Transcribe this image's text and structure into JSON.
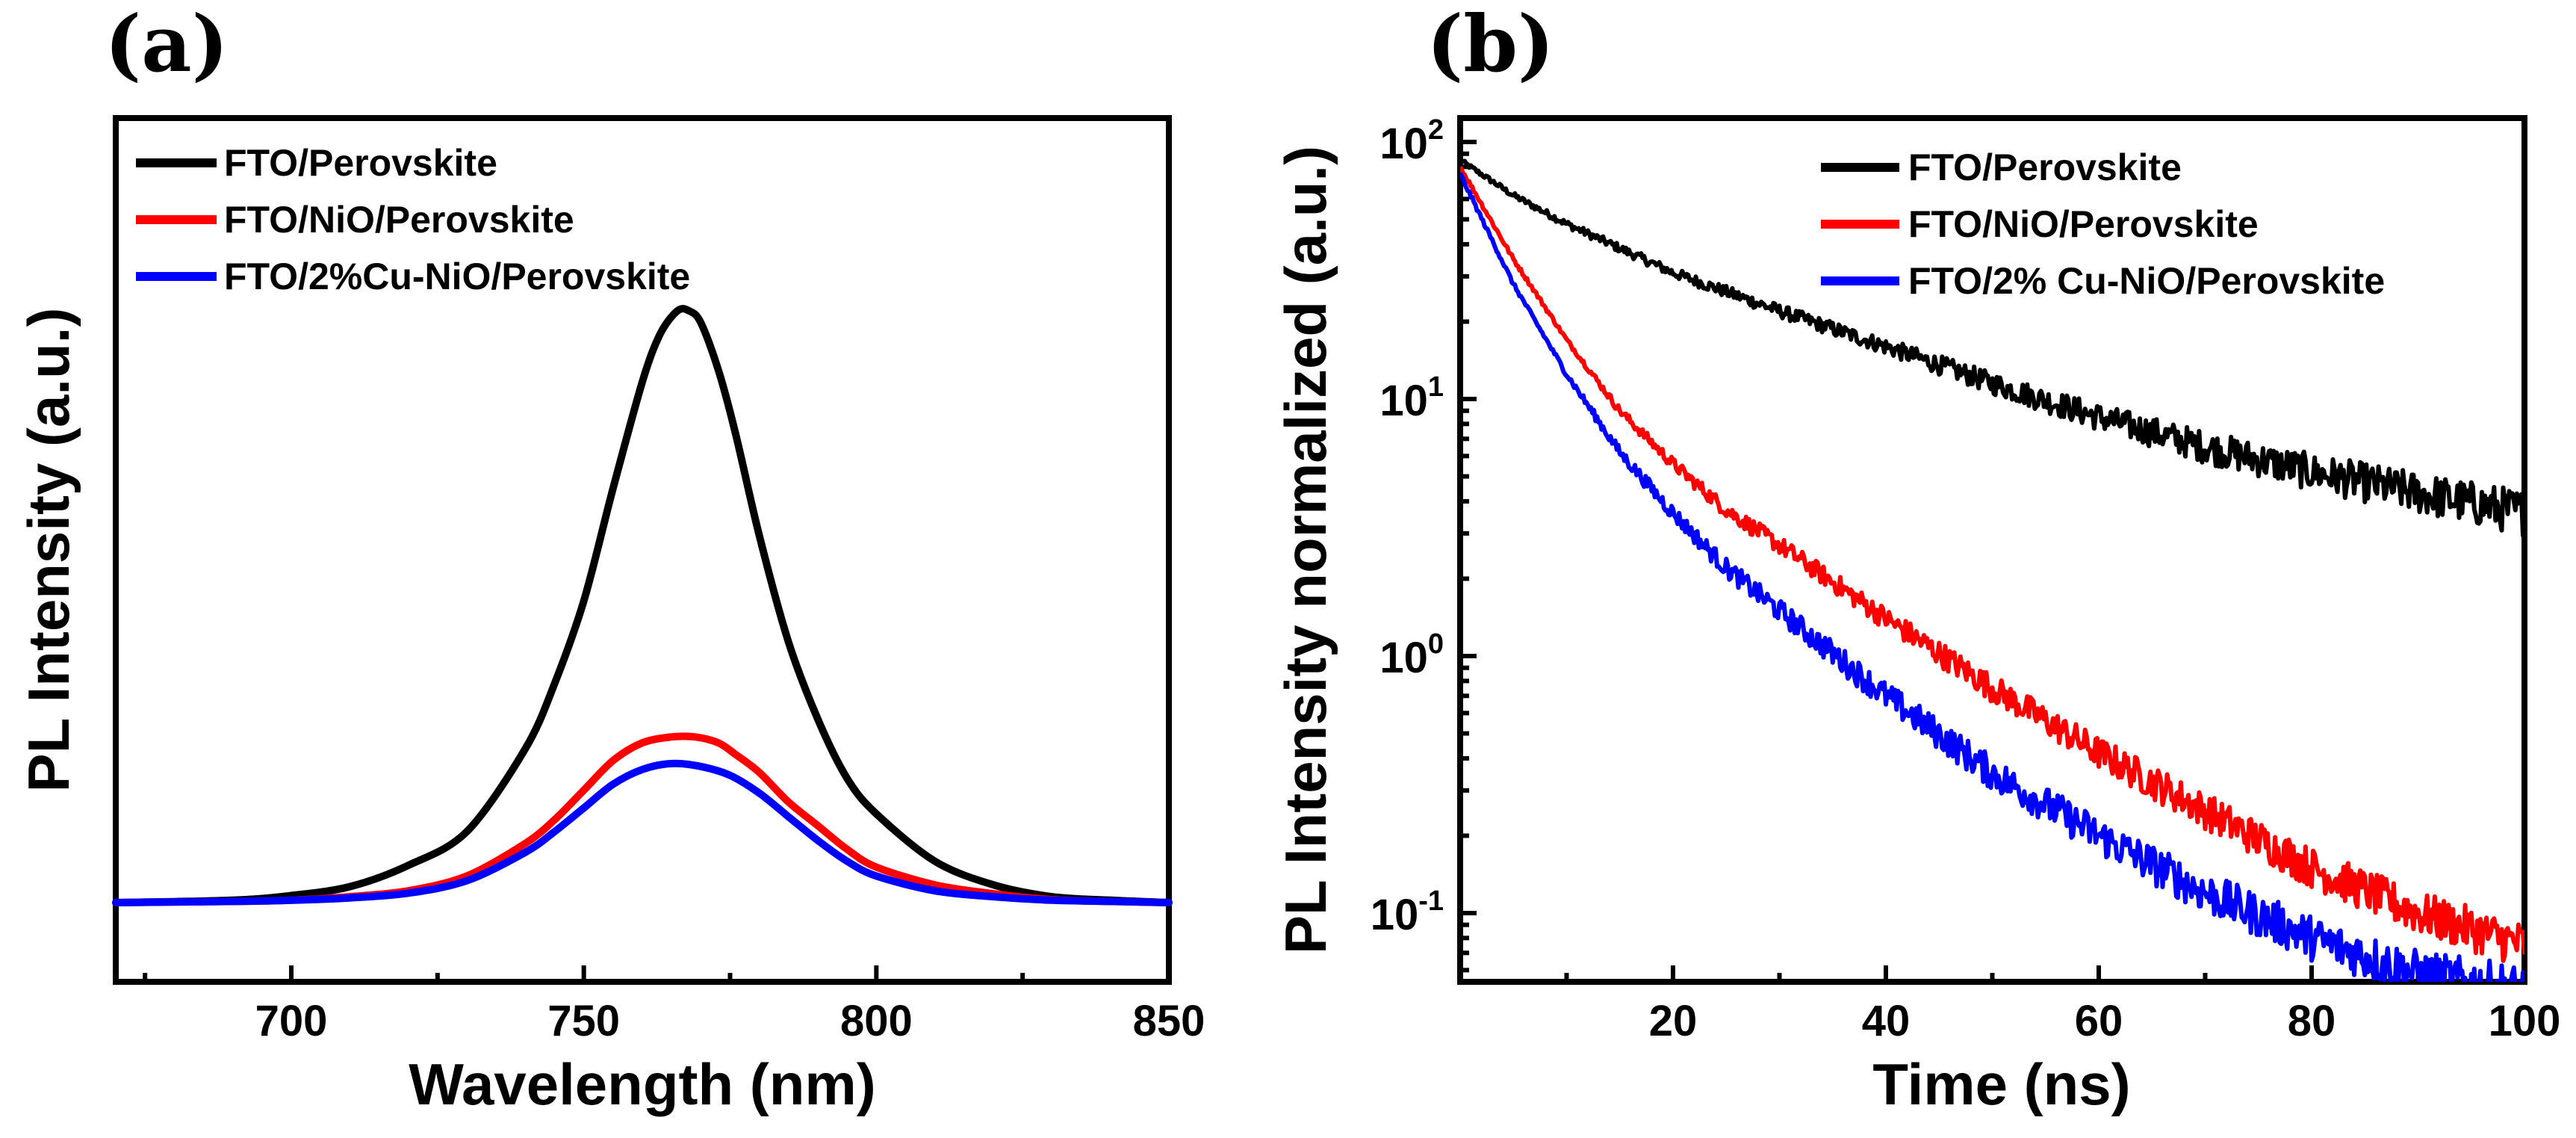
{
  "chart_data": [
    {
      "panel": "(a)",
      "type": "line",
      "xlabel": "Wavelength (nm)",
      "ylabel": "PL Intensity (a.u.)",
      "xlim": [
        670,
        850
      ],
      "ylim": [
        0,
        1.0
      ],
      "xticks": [
        700,
        750,
        800,
        850
      ],
      "yticks_shown": false,
      "legend_position": "top-left",
      "series": [
        {
          "name": "FTO/Perovskite",
          "color": "#000000",
          "x": [
            670,
            690,
            700,
            710,
            720,
            730,
            740,
            745,
            750,
            755,
            760,
            763,
            766,
            768,
            770,
            773,
            776,
            780,
            785,
            790,
            795,
            800,
            810,
            820,
            830,
            840,
            850
          ],
          "y": [
            0.0,
            0.004,
            0.012,
            0.027,
            0.063,
            0.12,
            0.26,
            0.37,
            0.51,
            0.7,
            0.88,
            0.96,
            1.0,
            1.0,
            0.98,
            0.9,
            0.79,
            0.62,
            0.44,
            0.31,
            0.21,
            0.15,
            0.07,
            0.03,
            0.01,
            0.004,
            0.0
          ]
        },
        {
          "name": "FTO/NiO/Perovskite",
          "color": "#ff0000",
          "x": [
            670,
            690,
            700,
            710,
            720,
            730,
            740,
            745,
            750,
            755,
            760,
            765,
            769,
            773,
            776,
            780,
            785,
            790,
            795,
            800,
            810,
            820,
            830,
            840,
            850
          ],
          "y": [
            0.0,
            0.002,
            0.004,
            0.01,
            0.02,
            0.045,
            0.1,
            0.14,
            0.19,
            0.24,
            0.27,
            0.28,
            0.28,
            0.27,
            0.25,
            0.22,
            0.17,
            0.13,
            0.09,
            0.06,
            0.03,
            0.015,
            0.005,
            0.002,
            0.0
          ]
        },
        {
          "name": "FTO/2%Cu-NiO/Perovskite",
          "color": "#0000ff",
          "x": [
            670,
            690,
            700,
            710,
            720,
            730,
            740,
            745,
            750,
            755,
            760,
            765,
            770,
            775,
            780,
            785,
            790,
            795,
            800,
            810,
            820,
            830,
            840,
            850
          ],
          "y": [
            0.0,
            0.002,
            0.004,
            0.008,
            0.016,
            0.037,
            0.085,
            0.12,
            0.16,
            0.2,
            0.225,
            0.235,
            0.23,
            0.215,
            0.185,
            0.145,
            0.105,
            0.07,
            0.045,
            0.02,
            0.01,
            0.004,
            0.002,
            0.0
          ]
        }
      ]
    },
    {
      "panel": "(b)",
      "type": "line",
      "yscale": "log",
      "xlabel": "Time (ns)",
      "ylabel": "PL Intensity normalized (a.u.)",
      "xlim": [
        0,
        100
      ],
      "ylim": [
        0.05,
        100
      ],
      "xticks": [
        20,
        40,
        60,
        80,
        100
      ],
      "yticks": [
        {
          "value": 0.1,
          "base": "10",
          "exp": "-1"
        },
        {
          "value": 1,
          "base": "10",
          "exp": "0"
        },
        {
          "value": 10,
          "base": "10",
          "exp": "1"
        },
        {
          "value": 100,
          "base": "10",
          "exp": "2"
        }
      ],
      "legend_position": "top-right",
      "series": [
        {
          "name": "FTO/Perovskite",
          "color": "#000000",
          "x": [
            0,
            5,
            10,
            20,
            30,
            40,
            50,
            60,
            70,
            80,
            90,
            100
          ],
          "y": [
            85,
            62,
            48,
            31,
            22,
            16,
            11.5,
            8.5,
            6.5,
            5.2,
            4.3,
            3.6
          ]
        },
        {
          "name": "FTO/NiO/Perovskite",
          "color": "#ff0000",
          "x": [
            0,
            5,
            10,
            15,
            20,
            25,
            30,
            40,
            50,
            60,
            70,
            80,
            90,
            100
          ],
          "y": [
            80,
            35,
            17,
            9,
            5.6,
            3.7,
            2.7,
            1.4,
            0.75,
            0.42,
            0.25,
            0.15,
            0.1,
            0.075
          ]
        },
        {
          "name": "FTO/2% Cu-NiO/Perovskite",
          "color": "#0000ff",
          "x": [
            0,
            5,
            10,
            15,
            20,
            25,
            30,
            40,
            50,
            60,
            70,
            80,
            90,
            100
          ],
          "y": [
            75,
            28,
            12.5,
            6.2,
            3.6,
            2.2,
            1.5,
            0.7,
            0.35,
            0.2,
            0.12,
            0.08,
            0.058,
            0.05
          ]
        }
      ]
    }
  ]
}
